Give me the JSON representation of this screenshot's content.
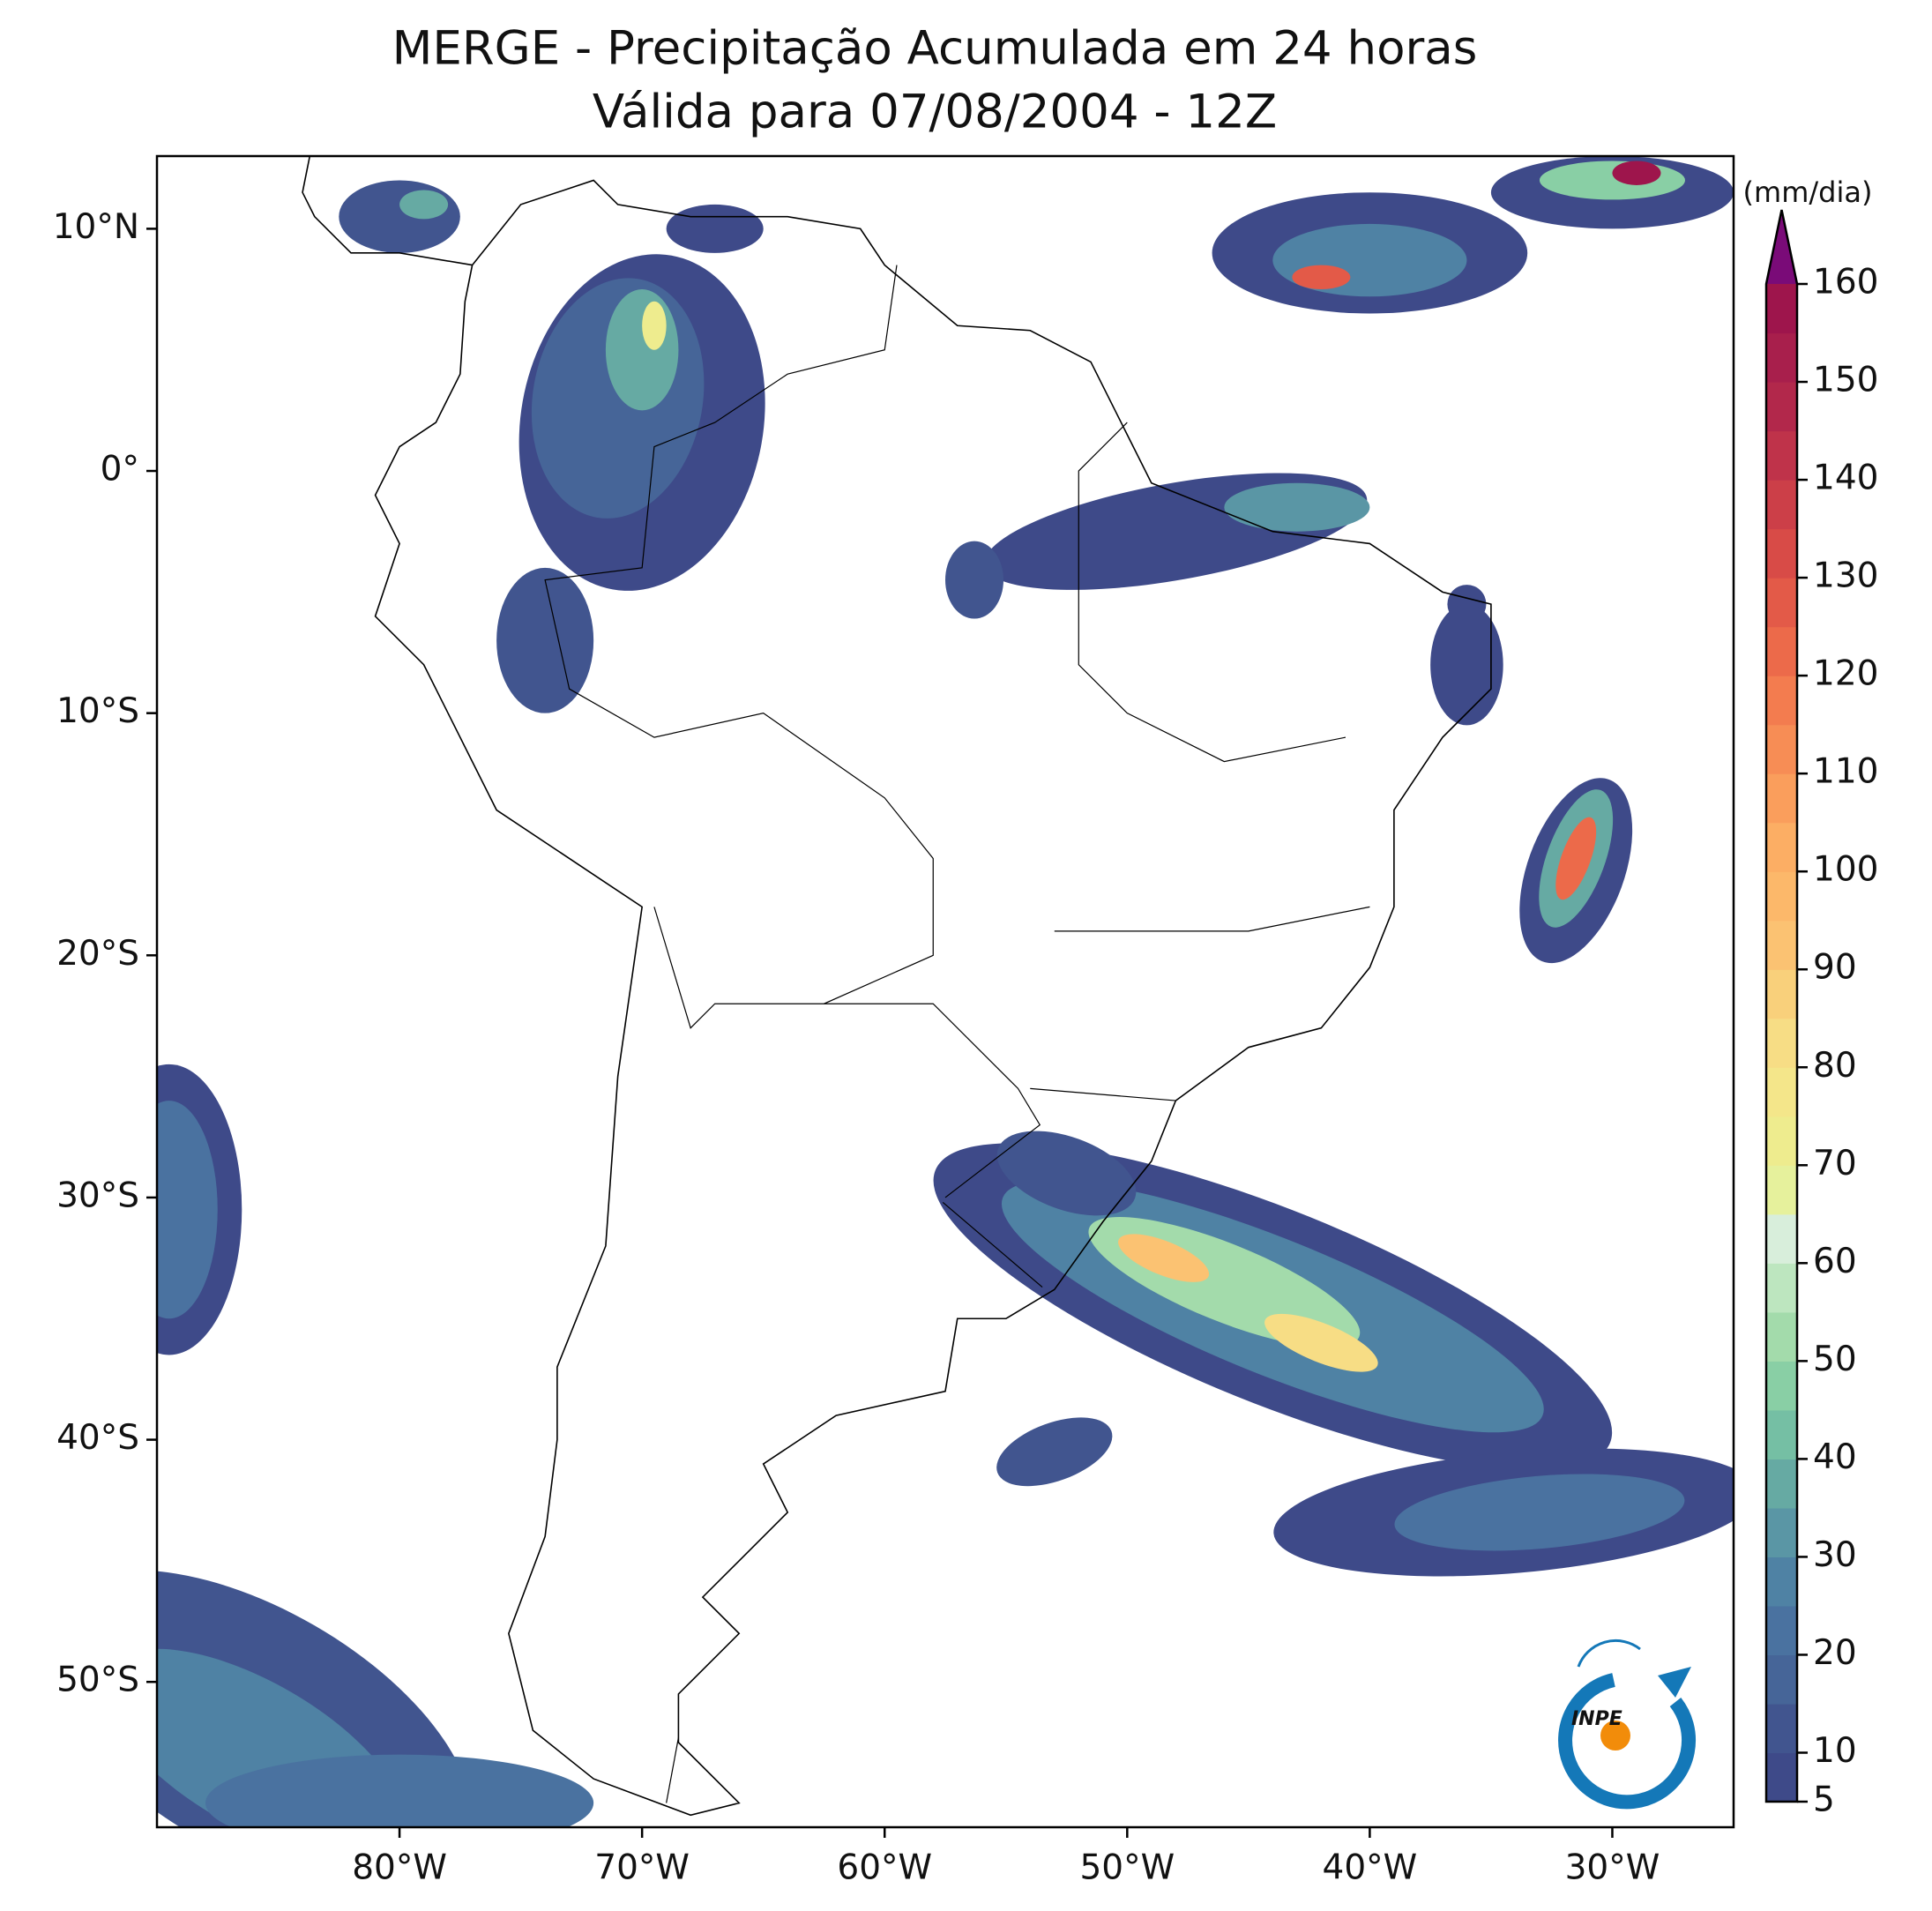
{
  "title": [
    "MERGE - Precipitação Acumulada em 24 horas",
    "Válida para 07/08/2004 - 12Z"
  ],
  "map": {
    "xlim": [
      -90,
      -25
    ],
    "ylim": [
      -56,
      13
    ],
    "xticks": [
      {
        "value": -80,
        "label": "80°W"
      },
      {
        "value": -70,
        "label": "70°W"
      },
      {
        "value": -60,
        "label": "60°W"
      },
      {
        "value": -50,
        "label": "50°W"
      },
      {
        "value": -40,
        "label": "40°W"
      },
      {
        "value": -30,
        "label": "30°W"
      }
    ],
    "yticks": [
      {
        "value": 10,
        "label": "10°N"
      },
      {
        "value": 0,
        "label": "0°"
      },
      {
        "value": -10,
        "label": "10°S"
      },
      {
        "value": -20,
        "label": "20°S"
      },
      {
        "value": -30,
        "label": "30°S"
      },
      {
        "value": -40,
        "label": "40°S"
      },
      {
        "value": -50,
        "label": "50°S"
      }
    ]
  },
  "colorbar": {
    "unit": "(mm/dia)",
    "lim": [
      5,
      160
    ],
    "ticks": [
      5,
      10,
      20,
      30,
      40,
      50,
      60,
      70,
      80,
      90,
      100,
      110,
      120,
      130,
      140,
      150,
      160
    ],
    "colors": [
      "#3e4a89",
      "#41558f",
      "#466598",
      "#4a72a0",
      "#4f82a4",
      "#5a96a5",
      "#66aaa3",
      "#75bfa4",
      "#89cfa5",
      "#a3dbab",
      "#bde6bf",
      "#d8eedb",
      "#e6f19c",
      "#eeec8e",
      "#f4e68a",
      "#f7dd85",
      "#f9d07b",
      "#fbc272",
      "#fcb86a",
      "#fcae64",
      "#fa9e5c",
      "#f78d55",
      "#f37c4f",
      "#ec6a4a",
      "#e35a48",
      "#d84b47",
      "#cc3f48",
      "#bf334a",
      "#b2284b",
      "#a81f4c",
      "#9e154c"
    ],
    "extend_color": "#7a0b78"
  },
  "logo": "INPE"
}
